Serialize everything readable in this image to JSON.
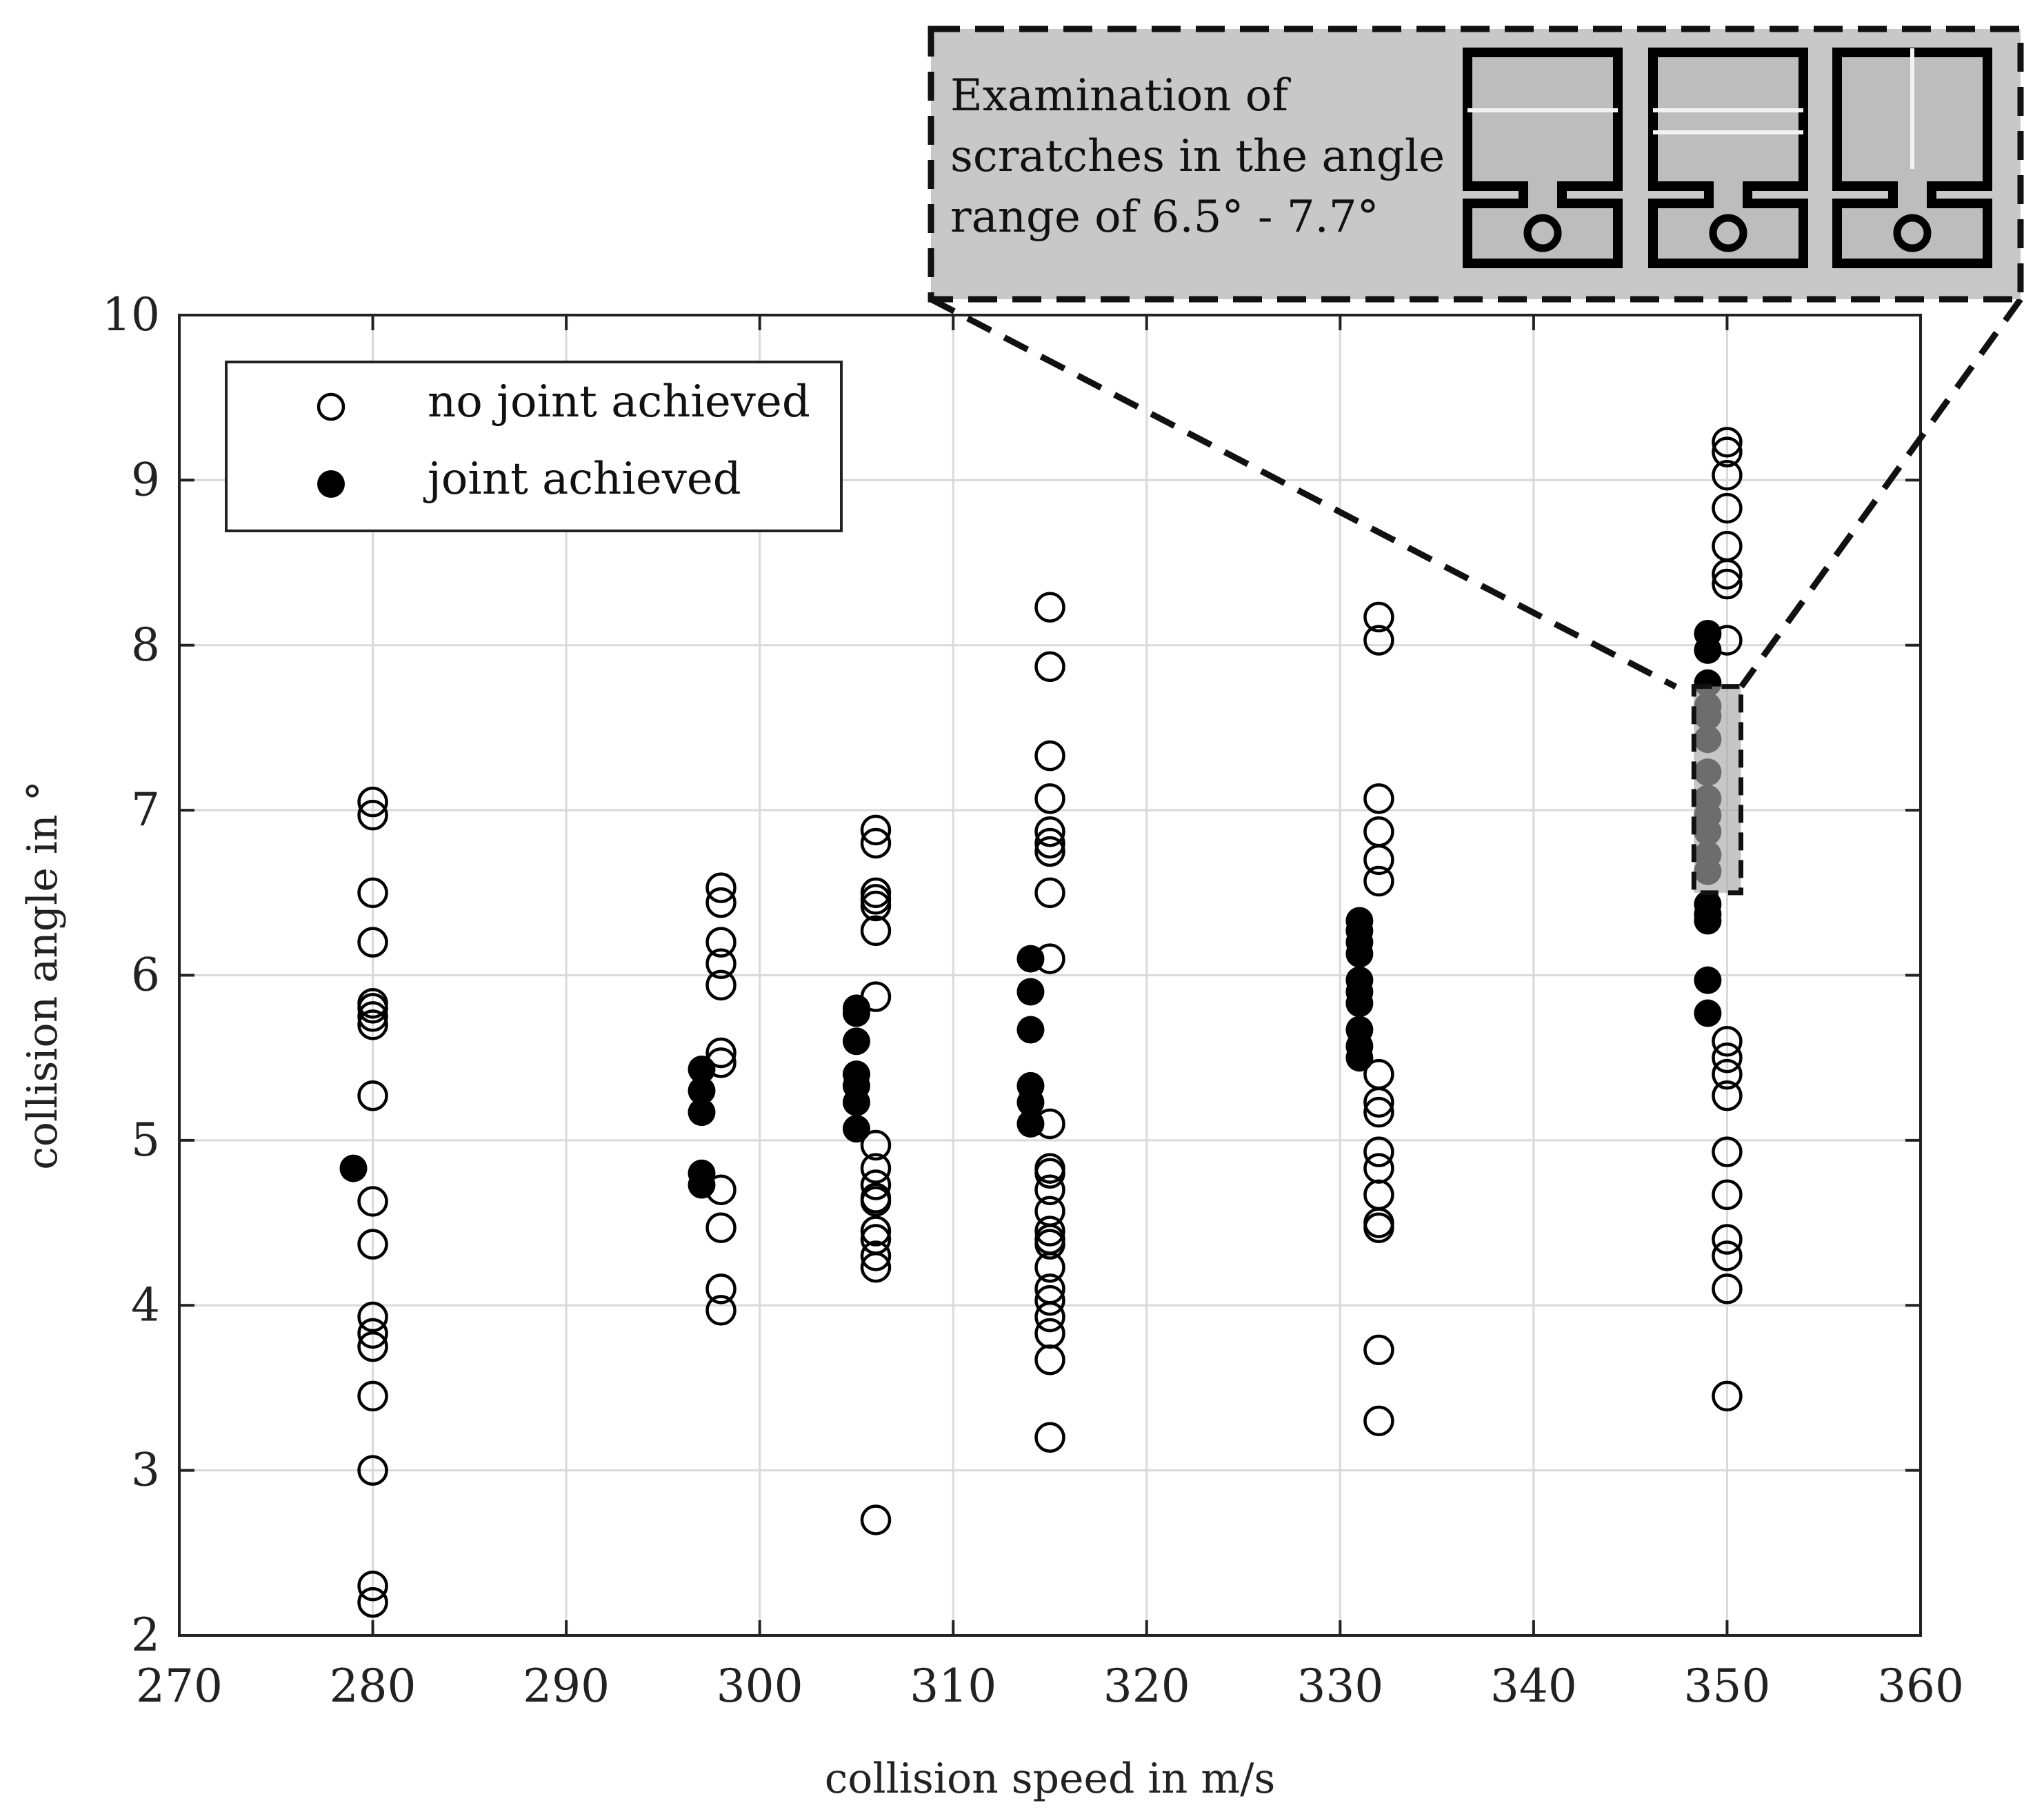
{
  "chart_data": {
    "type": "scatter",
    "xlabel": "collision speed in m/s",
    "ylabel": "collision angle in °",
    "xlim": [
      270,
      360
    ],
    "ylim": [
      2,
      10
    ],
    "xticks": [
      "270",
      "280",
      "290",
      "300",
      "310",
      "320",
      "330",
      "340",
      "350",
      "360"
    ],
    "yticks": [
      "2",
      "3",
      "4",
      "5",
      "6",
      "7",
      "8",
      "9",
      "10"
    ],
    "grid": true,
    "legend_position": "top-left",
    "series": [
      {
        "name": "no joint achieved",
        "marker": "open-circle",
        "points": [
          [
            280,
            7.05
          ],
          [
            280,
            6.97
          ],
          [
            280,
            6.5
          ],
          [
            280,
            6.2
          ],
          [
            280,
            5.83
          ],
          [
            280,
            5.8
          ],
          [
            280,
            5.75
          ],
          [
            280,
            5.7
          ],
          [
            280,
            5.27
          ],
          [
            280,
            4.63
          ],
          [
            280,
            4.37
          ],
          [
            280,
            3.93
          ],
          [
            280,
            3.83
          ],
          [
            280,
            3.75
          ],
          [
            280,
            3.45
          ],
          [
            280,
            3.0
          ],
          [
            280,
            2.3
          ],
          [
            280,
            2.2
          ],
          [
            298,
            6.53
          ],
          [
            298,
            6.44
          ],
          [
            298,
            6.2
          ],
          [
            298,
            6.07
          ],
          [
            298,
            5.94
          ],
          [
            298,
            5.53
          ],
          [
            298,
            5.47
          ],
          [
            298,
            4.7
          ],
          [
            298,
            4.47
          ],
          [
            298,
            4.1
          ],
          [
            298,
            3.97
          ],
          [
            306,
            6.88
          ],
          [
            306,
            6.8
          ],
          [
            306,
            6.5
          ],
          [
            306,
            6.46
          ],
          [
            306,
            6.42
          ],
          [
            306,
            6.27
          ],
          [
            306,
            5.87
          ],
          [
            306,
            4.97
          ],
          [
            306,
            4.83
          ],
          [
            306,
            4.73
          ],
          [
            306,
            4.65
          ],
          [
            306,
            4.63
          ],
          [
            306,
            4.45
          ],
          [
            306,
            4.4
          ],
          [
            306,
            4.3
          ],
          [
            306,
            4.23
          ],
          [
            306,
            2.7
          ],
          [
            315,
            8.23
          ],
          [
            315,
            7.87
          ],
          [
            315,
            7.33
          ],
          [
            315,
            7.07
          ],
          [
            315,
            6.87
          ],
          [
            315,
            6.8
          ],
          [
            315,
            6.75
          ],
          [
            315,
            6.5
          ],
          [
            315,
            6.1
          ],
          [
            315,
            5.1
          ],
          [
            315,
            4.83
          ],
          [
            315,
            4.8
          ],
          [
            315,
            4.7
          ],
          [
            315,
            4.57
          ],
          [
            315,
            4.45
          ],
          [
            315,
            4.4
          ],
          [
            315,
            4.37
          ],
          [
            315,
            4.23
          ],
          [
            315,
            4.1
          ],
          [
            315,
            4.03
          ],
          [
            315,
            3.93
          ],
          [
            315,
            3.83
          ],
          [
            315,
            3.67
          ],
          [
            315,
            3.2
          ],
          [
            332,
            8.17
          ],
          [
            332,
            8.03
          ],
          [
            332,
            7.07
          ],
          [
            332,
            6.87
          ],
          [
            332,
            6.7
          ],
          [
            332,
            6.57
          ],
          [
            332,
            5.4
          ],
          [
            332,
            5.23
          ],
          [
            332,
            5.17
          ],
          [
            332,
            4.93
          ],
          [
            332,
            4.83
          ],
          [
            332,
            4.67
          ],
          [
            332,
            4.5
          ],
          [
            332,
            4.47
          ],
          [
            332,
            3.73
          ],
          [
            332,
            3.3
          ],
          [
            350,
            9.23
          ],
          [
            350,
            9.17
          ],
          [
            350,
            9.03
          ],
          [
            350,
            8.83
          ],
          [
            350,
            8.6
          ],
          [
            350,
            8.43
          ],
          [
            350,
            8.37
          ],
          [
            350,
            8.03
          ],
          [
            350,
            5.6
          ],
          [
            350,
            5.5
          ],
          [
            350,
            5.4
          ],
          [
            350,
            5.27
          ],
          [
            350,
            4.93
          ],
          [
            350,
            4.67
          ],
          [
            350,
            4.4
          ],
          [
            350,
            4.3
          ],
          [
            350,
            4.1
          ],
          [
            350,
            3.45
          ]
        ]
      },
      {
        "name": "joint achieved",
        "marker": "filled-circle",
        "points": [
          [
            279,
            4.83
          ],
          [
            297,
            5.43
          ],
          [
            297,
            5.3
          ],
          [
            297,
            5.17
          ],
          [
            297,
            4.8
          ],
          [
            297,
            4.73
          ],
          [
            305,
            5.8
          ],
          [
            305,
            5.77
          ],
          [
            305,
            5.6
          ],
          [
            305,
            5.4
          ],
          [
            305,
            5.33
          ],
          [
            305,
            5.23
          ],
          [
            305,
            5.07
          ],
          [
            314,
            6.1
          ],
          [
            314,
            5.9
          ],
          [
            314,
            5.67
          ],
          [
            314,
            5.33
          ],
          [
            314,
            5.23
          ],
          [
            314,
            5.1
          ],
          [
            331,
            6.33
          ],
          [
            331,
            6.27
          ],
          [
            331,
            6.2
          ],
          [
            331,
            6.13
          ],
          [
            331,
            5.97
          ],
          [
            331,
            5.9
          ],
          [
            331,
            5.83
          ],
          [
            331,
            5.67
          ],
          [
            331,
            5.57
          ],
          [
            331,
            5.5
          ],
          [
            349,
            8.07
          ],
          [
            349,
            7.97
          ],
          [
            349,
            7.77
          ],
          [
            349,
            7.63
          ],
          [
            349,
            7.57
          ],
          [
            349,
            7.43
          ],
          [
            349,
            7.23
          ],
          [
            349,
            7.07
          ],
          [
            349,
            6.97
          ],
          [
            349,
            6.87
          ],
          [
            349,
            6.73
          ],
          [
            349,
            6.63
          ],
          [
            349,
            6.43
          ],
          [
            349,
            6.37
          ],
          [
            349,
            6.33
          ],
          [
            349,
            5.97
          ],
          [
            349,
            5.77
          ]
        ]
      }
    ],
    "highlight_region": {
      "x": [
        348,
        351
      ],
      "y": [
        6.5,
        7.75
      ]
    },
    "annotation": {
      "lines": [
        "Examination of",
        "scratches in the angle",
        "range of 6.5° - 7.7°"
      ]
    }
  },
  "colors": {
    "inset_fill": "#c8c8c8",
    "grid": "#d9d9d9",
    "highlight_fill": "#a8a8a8",
    "marker": "#000000"
  }
}
